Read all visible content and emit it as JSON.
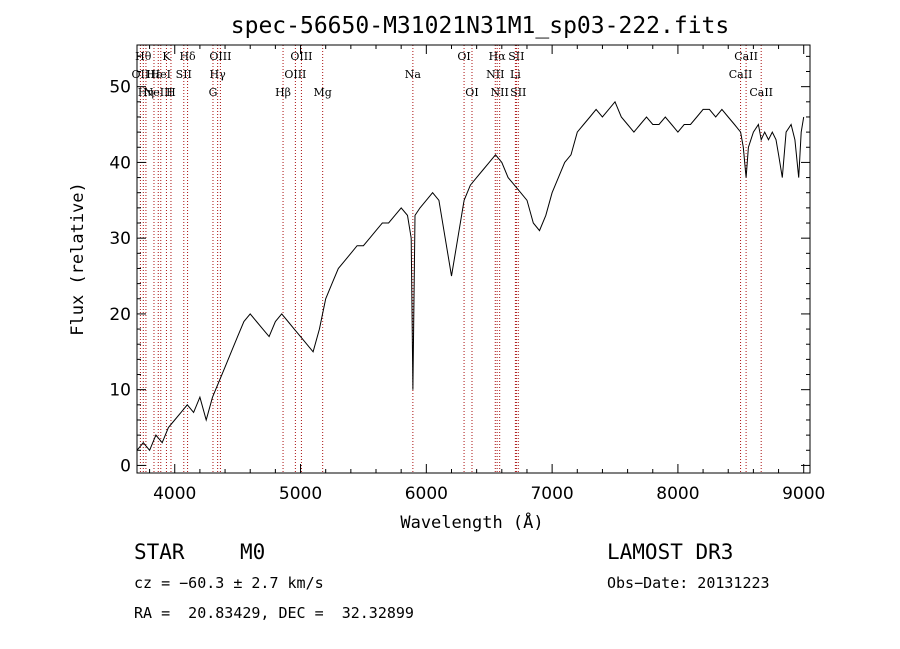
{
  "chart_data": {
    "type": "line",
    "title": "spec-56650-M31021N31M1_sp03-222.fits",
    "xlabel": "Wavelength (Å)",
    "ylabel": "Flux (relative)",
    "xlim": [
      3700,
      9050
    ],
    "ylim": [
      -1,
      55.5
    ],
    "xticks": [
      4000,
      5000,
      6000,
      7000,
      8000,
      9000
    ],
    "yticks": [
      0,
      10,
      20,
      30,
      40,
      50
    ],
    "grid": false,
    "line_color": "#000000",
    "marker_color": "#aa1111",
    "series": [
      {
        "x": [
          3700,
          3750,
          3800,
          3850,
          3900,
          3950,
          4000,
          4050,
          4100,
          4150,
          4200,
          4250,
          4300,
          4350,
          4400,
          4450,
          4500,
          4550,
          4600,
          4650,
          4700,
          4750,
          4800,
          4850,
          4900,
          4950,
          5000,
          5050,
          5100,
          5150,
          5200,
          5250,
          5300,
          5350,
          5400,
          5450,
          5500,
          5550,
          5600,
          5650,
          5700,
          5750,
          5800,
          5850,
          5880,
          5893,
          5910,
          5950,
          6000,
          6050,
          6100,
          6150,
          6200,
          6250,
          6300,
          6350,
          6400,
          6450,
          6500,
          6550,
          6600,
          6650,
          6700,
          6750,
          6800,
          6850,
          6900,
          6950,
          7000,
          7050,
          7100,
          7150,
          7200,
          7250,
          7300,
          7350,
          7400,
          7450,
          7500,
          7550,
          7600,
          7650,
          7700,
          7750,
          7800,
          7850,
          7900,
          7950,
          8000,
          8050,
          8100,
          8150,
          8200,
          8250,
          8300,
          8350,
          8400,
          8450,
          8498,
          8520,
          8542,
          8560,
          8600,
          8640,
          8662,
          8690,
          8720,
          8750,
          8780,
          8800,
          8830,
          8860,
          8900,
          8930,
          8960,
          8980,
          9000
        ],
        "values": [
          2,
          3,
          2,
          4,
          3,
          5,
          6,
          7,
          8,
          7,
          9,
          6,
          9,
          11,
          13,
          15,
          17,
          19,
          20,
          19,
          18,
          17,
          19,
          20,
          19,
          18,
          17,
          16,
          15,
          18,
          22,
          24,
          26,
          27,
          28,
          29,
          29,
          30,
          31,
          32,
          32,
          33,
          34,
          33,
          30,
          10,
          33,
          34,
          35,
          36,
          35,
          30,
          25,
          30,
          35,
          37,
          38,
          39,
          40,
          41,
          40,
          38,
          37,
          36,
          35,
          32,
          31,
          33,
          36,
          38,
          40,
          41,
          44,
          45,
          46,
          47,
          46,
          47,
          48,
          46,
          45,
          44,
          45,
          46,
          45,
          45,
          46,
          45,
          44,
          45,
          45,
          46,
          47,
          47,
          46,
          47,
          46,
          45,
          44,
          42,
          38,
          42,
          44,
          45,
          43,
          44,
          43,
          44,
          43,
          41,
          38,
          44,
          45,
          43,
          38,
          44,
          46
        ]
      }
    ],
    "line_markers": [
      {
        "x": 3727,
        "label": "OII",
        "row": 1
      },
      {
        "x": 3750,
        "label": "Hθ",
        "row": 0
      },
      {
        "x": 3771,
        "label": "Hη",
        "row": 2
      },
      {
        "x": 3835,
        "label": "Hε",
        "row": 1
      },
      {
        "x": 3869,
        "label": "NeIII",
        "row": 2
      },
      {
        "x": 3889,
        "label": "HeI",
        "row": 1
      },
      {
        "x": 3934,
        "label": "K",
        "row": 0
      },
      {
        "x": 3970,
        "label": "H",
        "row": 2
      },
      {
        "x": 4072,
        "label": "SII",
        "row": 1
      },
      {
        "x": 4102,
        "label": "Hδ",
        "row": 0
      },
      {
        "x": 4304,
        "label": "G",
        "row": 2
      },
      {
        "x": 4341,
        "label": "Hγ",
        "row": 1
      },
      {
        "x": 4363,
        "label": "OIII",
        "row": 0
      },
      {
        "x": 4861,
        "label": "Hβ",
        "row": 2
      },
      {
        "x": 4959,
        "label": "OIII",
        "row": 1
      },
      {
        "x": 5007,
        "label": "OIII",
        "row": 0
      },
      {
        "x": 5176,
        "label": "Mg",
        "row": 2
      },
      {
        "x": 5893,
        "label": "Na",
        "row": 1
      },
      {
        "x": 6300,
        "label": "OI",
        "row": 0
      },
      {
        "x": 6363,
        "label": "OI",
        "row": 2
      },
      {
        "x": 6548,
        "label": "NII",
        "row": 1
      },
      {
        "x": 6563,
        "label": "Hα",
        "row": 0
      },
      {
        "x": 6583,
        "label": "NII",
        "row": 2
      },
      {
        "x": 6708,
        "label": "Li",
        "row": 1
      },
      {
        "x": 6716,
        "label": "SII",
        "row": 0
      },
      {
        "x": 6731,
        "label": "SII",
        "row": 2
      },
      {
        "x": 8498,
        "label": "CaII",
        "row": 1
      },
      {
        "x": 8542,
        "label": "CaII",
        "row": 0
      },
      {
        "x": 8662,
        "label": "CaII",
        "row": 2
      }
    ]
  },
  "info": {
    "class": "STAR",
    "subclass": "M0",
    "survey": "LAMOST DR3",
    "cz": "cz = −60.3 ± 2.7 km/s",
    "obs_date": "Obs−Date: 20131223",
    "radec": "RA =  20.83429, DEC =  32.32899"
  }
}
